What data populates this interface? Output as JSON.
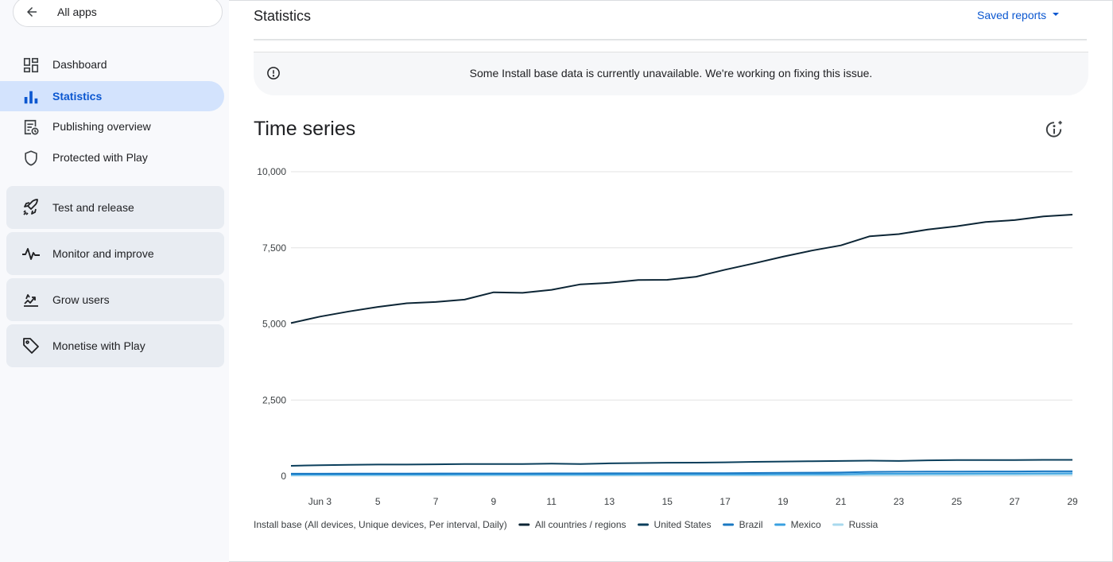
{
  "nav": {
    "back_label": "All apps",
    "items": [
      {
        "label": "Dashboard",
        "icon": "dashboard-icon"
      },
      {
        "label": "Statistics",
        "icon": "bar-chart-icon"
      },
      {
        "label": "Publishing overview",
        "icon": "publishing-icon"
      },
      {
        "label": "Protected with Play",
        "icon": "shield-icon"
      }
    ],
    "groups": [
      {
        "label": "Test and release",
        "icon": "rocket-icon"
      },
      {
        "label": "Monitor and improve",
        "icon": "pulse-icon"
      },
      {
        "label": "Grow users",
        "icon": "grow-icon"
      },
      {
        "label": "Monetise with Play",
        "icon": "tag-icon"
      }
    ]
  },
  "header": {
    "title": "Statistics",
    "saved_reports": "Saved reports"
  },
  "banner": {
    "message": "Some Install base data is currently unavailable. We're working on fixing this issue."
  },
  "section": {
    "title": "Time series"
  },
  "colors": {
    "accent": "#0b57d0",
    "active_nav_bg": "#d3e3fd"
  },
  "chart_data": {
    "type": "line",
    "xlabel": "",
    "ylabel": "",
    "ylim": [
      0,
      10000
    ],
    "y_ticks": [
      0,
      2500,
      5000,
      7500,
      10000
    ],
    "y_tick_labels": [
      "0",
      "2,500",
      "5,000",
      "7,500",
      "10,000"
    ],
    "x": [
      "2024-06-02",
      "2024-06-03",
      "2024-06-04",
      "2024-06-05",
      "2024-06-06",
      "2024-06-07",
      "2024-06-08",
      "2024-06-09",
      "2024-06-10",
      "2024-06-11",
      "2024-06-12",
      "2024-06-13",
      "2024-06-14",
      "2024-06-15",
      "2024-06-16",
      "2024-06-17",
      "2024-06-18",
      "2024-06-19",
      "2024-06-20",
      "2024-06-21",
      "2024-06-22",
      "2024-06-23",
      "2024-06-24",
      "2024-06-25",
      "2024-06-26",
      "2024-06-27",
      "2024-06-28",
      "2024-06-29"
    ],
    "x_tick_labels": [
      "Jun 3",
      "5",
      "7",
      "9",
      "11",
      "13",
      "15",
      "17",
      "19",
      "21",
      "23",
      "25",
      "27",
      "29"
    ],
    "legend_title": "Install base (All devices, Unique devices, Per interval, Daily)",
    "legend_position": "bottom-left",
    "grid": true,
    "series": [
      {
        "name": "All countries / regions",
        "color": "#0c2535",
        "values": [
          5030,
          5240,
          5410,
          5560,
          5680,
          5720,
          5800,
          6040,
          6020,
          6120,
          6300,
          6350,
          6440,
          6450,
          6550,
          6780,
          6990,
          7210,
          7410,
          7580,
          7880,
          7950,
          8100,
          8210,
          8350,
          8410,
          8530,
          8590
        ]
      },
      {
        "name": "United States",
        "color": "#0b3f5c",
        "values": [
          340,
          360,
          370,
          380,
          380,
          390,
          400,
          400,
          400,
          410,
          400,
          420,
          430,
          440,
          445,
          455,
          470,
          480,
          490,
          500,
          510,
          500,
          520,
          530,
          530,
          530,
          535,
          535
        ]
      },
      {
        "name": "Brazil",
        "color": "#1a78c2",
        "values": [
          80,
          82,
          84,
          85,
          86,
          88,
          88,
          90,
          90,
          92,
          92,
          94,
          95,
          96,
          98,
          100,
          105,
          110,
          115,
          120,
          140,
          145,
          150,
          152,
          154,
          155,
          158,
          160
        ]
      },
      {
        "name": "Mexico",
        "color": "#39a0e0",
        "values": [
          50,
          51,
          52,
          52,
          53,
          53,
          54,
          54,
          55,
          55,
          56,
          56,
          57,
          58,
          58,
          59,
          60,
          62,
          64,
          66,
          80,
          82,
          84,
          86,
          88,
          90,
          92,
          95
        ]
      },
      {
        "name": "Russia",
        "color": "#a8d9ee",
        "values": [
          20,
          20,
          21,
          21,
          22,
          22,
          22,
          23,
          23,
          23,
          24,
          24,
          25,
          25,
          26,
          26,
          27,
          28,
          29,
          30,
          35,
          36,
          38,
          40,
          42,
          43,
          44,
          45
        ]
      }
    ]
  }
}
